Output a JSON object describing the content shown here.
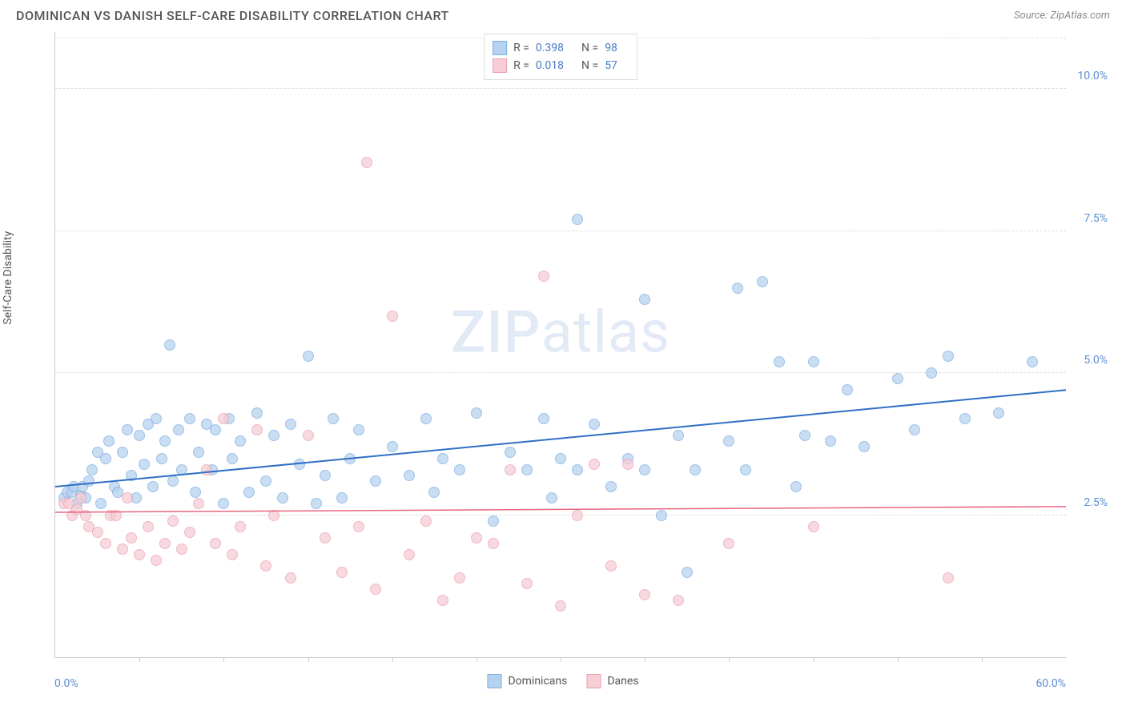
{
  "title": "DOMINICAN VS DANISH SELF-CARE DISABILITY CORRELATION CHART",
  "source": "Source: ZipAtlas.com",
  "ylabel": "Self-Care Disability",
  "watermark_bold": "ZIP",
  "watermark_rest": "atlas",
  "chart": {
    "type": "scatter",
    "xlim": [
      0,
      60
    ],
    "ylim": [
      0,
      11
    ],
    "y_gridlines": [
      2.5,
      5.0,
      7.5,
      10.0
    ],
    "y_tick_labels": [
      "2.5%",
      "5.0%",
      "7.5%",
      "10.0%"
    ],
    "x_ticks": [
      5,
      10,
      15,
      20,
      25,
      30,
      35,
      40,
      45,
      50,
      55
    ],
    "x_left_label": "0.0%",
    "x_right_label": "60.0%",
    "background_color": "#ffffff",
    "grid_color": "#dddddd",
    "axis_color": "#cccccc",
    "marker_radius": 7,
    "series": [
      {
        "name": "Dominicans",
        "fill": "#b7d2f0",
        "stroke": "#7eaee0",
        "line_color": "#2f6fc4",
        "r_label": "R =",
        "r_value": "0.398",
        "n_label": "N =",
        "n_value": "98",
        "trend": {
          "x1": 0,
          "y1": 3.0,
          "x2": 60,
          "y2": 4.7,
          "width": 2
        },
        "points": [
          [
            0.5,
            2.8
          ],
          [
            0.7,
            2.9
          ],
          [
            1.0,
            2.9
          ],
          [
            1.1,
            3.0
          ],
          [
            1.3,
            2.7
          ],
          [
            1.5,
            2.85
          ],
          [
            1.6,
            3.0
          ],
          [
            1.8,
            2.8
          ],
          [
            2.0,
            3.1
          ],
          [
            2.2,
            3.3
          ],
          [
            2.5,
            3.6
          ],
          [
            2.7,
            2.7
          ],
          [
            3.0,
            3.5
          ],
          [
            3.2,
            3.8
          ],
          [
            3.5,
            3.0
          ],
          [
            3.7,
            2.9
          ],
          [
            4.0,
            3.6
          ],
          [
            4.3,
            4.0
          ],
          [
            4.5,
            3.2
          ],
          [
            4.8,
            2.8
          ],
          [
            5.0,
            3.9
          ],
          [
            5.3,
            3.4
          ],
          [
            5.5,
            4.1
          ],
          [
            5.8,
            3.0
          ],
          [
            6.0,
            4.2
          ],
          [
            6.3,
            3.5
          ],
          [
            6.5,
            3.8
          ],
          [
            6.8,
            5.5
          ],
          [
            7.0,
            3.1
          ],
          [
            7.3,
            4.0
          ],
          [
            7.5,
            3.3
          ],
          [
            8.0,
            4.2
          ],
          [
            8.3,
            2.9
          ],
          [
            8.5,
            3.6
          ],
          [
            9.0,
            4.1
          ],
          [
            9.3,
            3.3
          ],
          [
            9.5,
            4.0
          ],
          [
            10.0,
            2.7
          ],
          [
            10.3,
            4.2
          ],
          [
            10.5,
            3.5
          ],
          [
            11.0,
            3.8
          ],
          [
            11.5,
            2.9
          ],
          [
            12.0,
            4.3
          ],
          [
            12.5,
            3.1
          ],
          [
            13.0,
            3.9
          ],
          [
            13.5,
            2.8
          ],
          [
            14.0,
            4.1
          ],
          [
            14.5,
            3.4
          ],
          [
            15.0,
            5.3
          ],
          [
            15.5,
            2.7
          ],
          [
            16.0,
            3.2
          ],
          [
            16.5,
            4.2
          ],
          [
            17.0,
            2.8
          ],
          [
            17.5,
            3.5
          ],
          [
            18.0,
            4.0
          ],
          [
            19.0,
            3.1
          ],
          [
            20.0,
            3.7
          ],
          [
            21.0,
            3.2
          ],
          [
            22.0,
            4.2
          ],
          [
            22.5,
            2.9
          ],
          [
            23.0,
            3.5
          ],
          [
            24.0,
            3.3
          ],
          [
            25.0,
            4.3
          ],
          [
            26.0,
            2.4
          ],
          [
            27.0,
            3.6
          ],
          [
            28.0,
            3.3
          ],
          [
            29.0,
            4.2
          ],
          [
            29.5,
            2.8
          ],
          [
            30.0,
            3.5
          ],
          [
            31.0,
            3.3
          ],
          [
            31.0,
            7.7
          ],
          [
            32.0,
            4.1
          ],
          [
            33.0,
            3.0
          ],
          [
            34.0,
            3.5
          ],
          [
            35.0,
            3.3
          ],
          [
            35.0,
            6.3
          ],
          [
            36.0,
            2.5
          ],
          [
            37.0,
            3.9
          ],
          [
            37.5,
            1.5
          ],
          [
            38.0,
            3.3
          ],
          [
            40.0,
            3.8
          ],
          [
            40.5,
            6.5
          ],
          [
            41.0,
            3.3
          ],
          [
            42.0,
            6.6
          ],
          [
            43.0,
            5.2
          ],
          [
            44.0,
            3.0
          ],
          [
            44.5,
            3.9
          ],
          [
            45.0,
            5.2
          ],
          [
            46.0,
            3.8
          ],
          [
            47.0,
            4.7
          ],
          [
            48.0,
            3.7
          ],
          [
            50.0,
            4.9
          ],
          [
            51.0,
            4.0
          ],
          [
            52.0,
            5.0
          ],
          [
            53.0,
            5.3
          ],
          [
            54.0,
            4.2
          ],
          [
            56.0,
            4.3
          ],
          [
            58.0,
            5.2
          ]
        ]
      },
      {
        "name": "Danes",
        "fill": "#f7cdd6",
        "stroke": "#eaa0b2",
        "line_color": "#e8657f",
        "r_label": "R =",
        "r_value": "0.018",
        "n_label": "N =",
        "n_value": "57",
        "trend": {
          "x1": 0,
          "y1": 2.55,
          "x2": 60,
          "y2": 2.65,
          "width": 1.5
        },
        "points": [
          [
            0.5,
            2.7
          ],
          [
            0.8,
            2.7
          ],
          [
            1.0,
            2.5
          ],
          [
            1.3,
            2.6
          ],
          [
            1.5,
            2.8
          ],
          [
            1.8,
            2.5
          ],
          [
            2.0,
            2.3
          ],
          [
            2.5,
            2.2
          ],
          [
            3.0,
            2.0
          ],
          [
            3.3,
            2.5
          ],
          [
            3.6,
            2.5
          ],
          [
            4.0,
            1.9
          ],
          [
            4.3,
            2.8
          ],
          [
            4.5,
            2.1
          ],
          [
            5.0,
            1.8
          ],
          [
            5.5,
            2.3
          ],
          [
            6.0,
            1.7
          ],
          [
            6.5,
            2.0
          ],
          [
            7.0,
            2.4
          ],
          [
            7.5,
            1.9
          ],
          [
            8.0,
            2.2
          ],
          [
            8.5,
            2.7
          ],
          [
            9.0,
            3.3
          ],
          [
            9.5,
            2.0
          ],
          [
            10.0,
            4.2
          ],
          [
            10.5,
            1.8
          ],
          [
            11.0,
            2.3
          ],
          [
            12.0,
            4.0
          ],
          [
            12.5,
            1.6
          ],
          [
            13.0,
            2.5
          ],
          [
            14.0,
            1.4
          ],
          [
            15.0,
            3.9
          ],
          [
            16.0,
            2.1
          ],
          [
            17.0,
            1.5
          ],
          [
            18.0,
            2.3
          ],
          [
            18.5,
            8.7
          ],
          [
            19.0,
            1.2
          ],
          [
            20.0,
            6.0
          ],
          [
            21.0,
            1.8
          ],
          [
            22.0,
            2.4
          ],
          [
            23.0,
            1.0
          ],
          [
            24.0,
            1.4
          ],
          [
            25.0,
            2.1
          ],
          [
            26.0,
            2.0
          ],
          [
            27.0,
            3.3
          ],
          [
            28.0,
            1.3
          ],
          [
            29.0,
            6.7
          ],
          [
            30.0,
            0.9
          ],
          [
            31.0,
            2.5
          ],
          [
            32.0,
            3.4
          ],
          [
            33.0,
            1.6
          ],
          [
            34.0,
            3.4
          ],
          [
            35.0,
            1.1
          ],
          [
            37.0,
            1.0
          ],
          [
            40.0,
            2.0
          ],
          [
            45.0,
            2.3
          ],
          [
            53.0,
            1.4
          ]
        ]
      }
    ]
  },
  "legend_bottom": [
    {
      "name": "Dominicans",
      "fill": "#b7d2f0",
      "stroke": "#7eaee0"
    },
    {
      "name": "Danes",
      "fill": "#f7cdd6",
      "stroke": "#eaa0b2"
    }
  ]
}
